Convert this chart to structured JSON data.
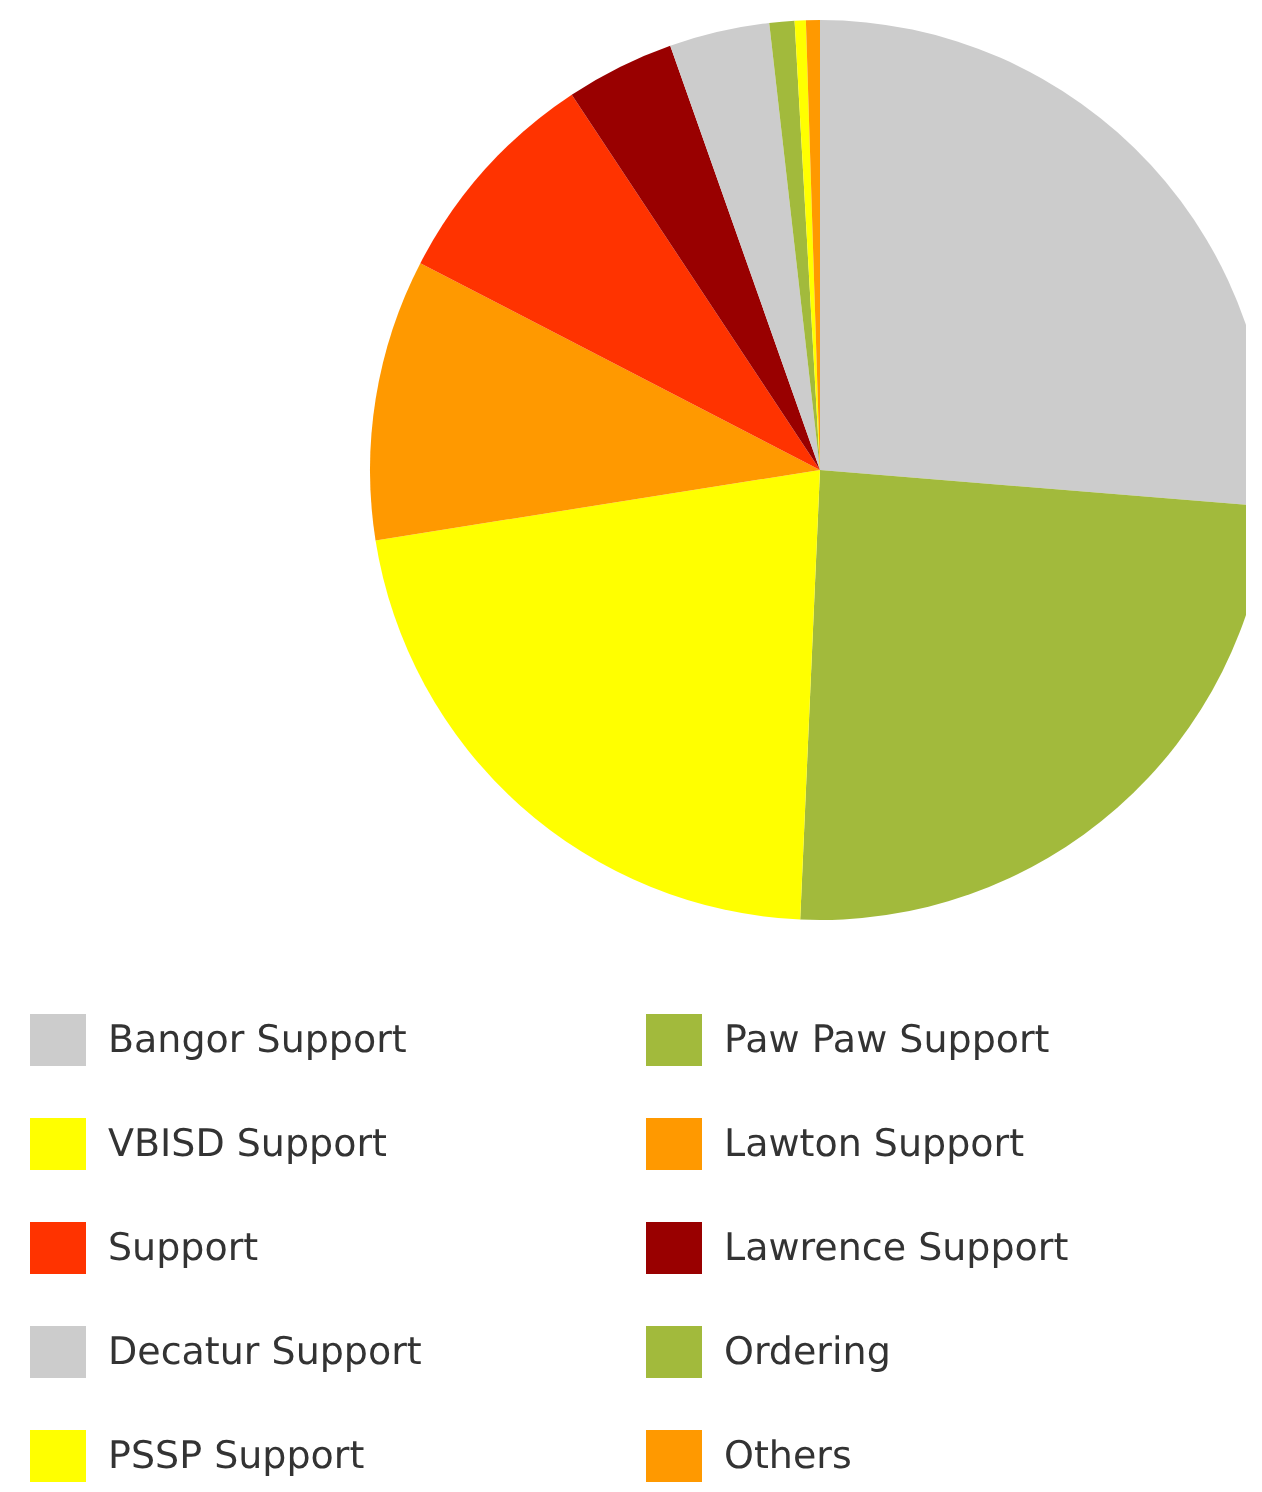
{
  "chart_data": {
    "type": "pie",
    "categories": [
      "Bangor Support",
      "Paw Paw Support",
      "VBISD Support",
      "Lawton Support",
      "Support",
      "Lawrence Support",
      "Decatur Support",
      "Ordering",
      "PSSP Support",
      "Others"
    ],
    "values": [
      26.3,
      24.4,
      21.8,
      10.1,
      8.1,
      3.9,
      3.6,
      0.9,
      0.4,
      0.5
    ],
    "colors": [
      "#cccccc",
      "#a2ba3c",
      "#ffff00",
      "#ff9900",
      "#ff3300",
      "#990000",
      "#cccccc",
      "#a2ba3c",
      "#ffff00",
      "#ff9900"
    ],
    "legend": "bottom"
  }
}
